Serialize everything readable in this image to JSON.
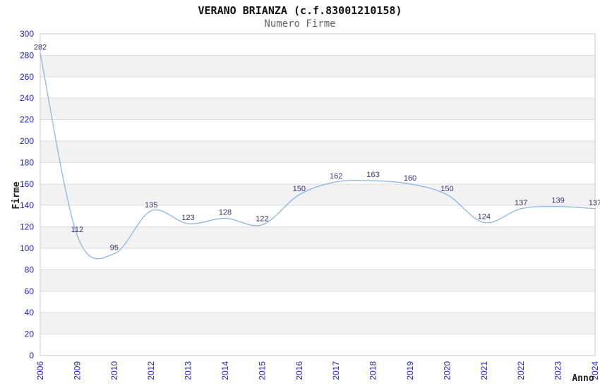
{
  "chart_data": {
    "type": "line",
    "title": "VERANO BRIANZA (c.f.83001210158)",
    "subtitle": "Numero Firme",
    "xlabel": "Anno",
    "ylabel": "Firme",
    "categories": [
      "2006",
      "2009",
      "2010",
      "2012",
      "2013",
      "2014",
      "2015",
      "2016",
      "2017",
      "2018",
      "2019",
      "2020",
      "2021",
      "2022",
      "2023",
      "2024"
    ],
    "values": [
      282,
      112,
      95,
      135,
      123,
      128,
      122,
      150,
      162,
      163,
      160,
      150,
      124,
      137,
      139,
      137
    ],
    "ylim": [
      0,
      300
    ],
    "ytick_step": 20,
    "ytick_labels": [
      "0",
      "20",
      "40",
      "60",
      "80",
      "100",
      "120",
      "140",
      "160",
      "180",
      "200",
      "220",
      "240",
      "260",
      "280",
      "300"
    ],
    "grid": "horizontal-bands-alternating",
    "legend_position": "none",
    "colors": {
      "line": "#8ab6e8",
      "value_label": "#333377",
      "tick_label": "#2222cc",
      "title": "#111111",
      "subtitle": "#666666",
      "axis_title": "#222222",
      "band_gray": "#f2f2f2",
      "band_white": "#ffffff",
      "gridline": "#dcdcdc",
      "plot_border": "#c9c9c9",
      "background": "#ffffff"
    }
  }
}
